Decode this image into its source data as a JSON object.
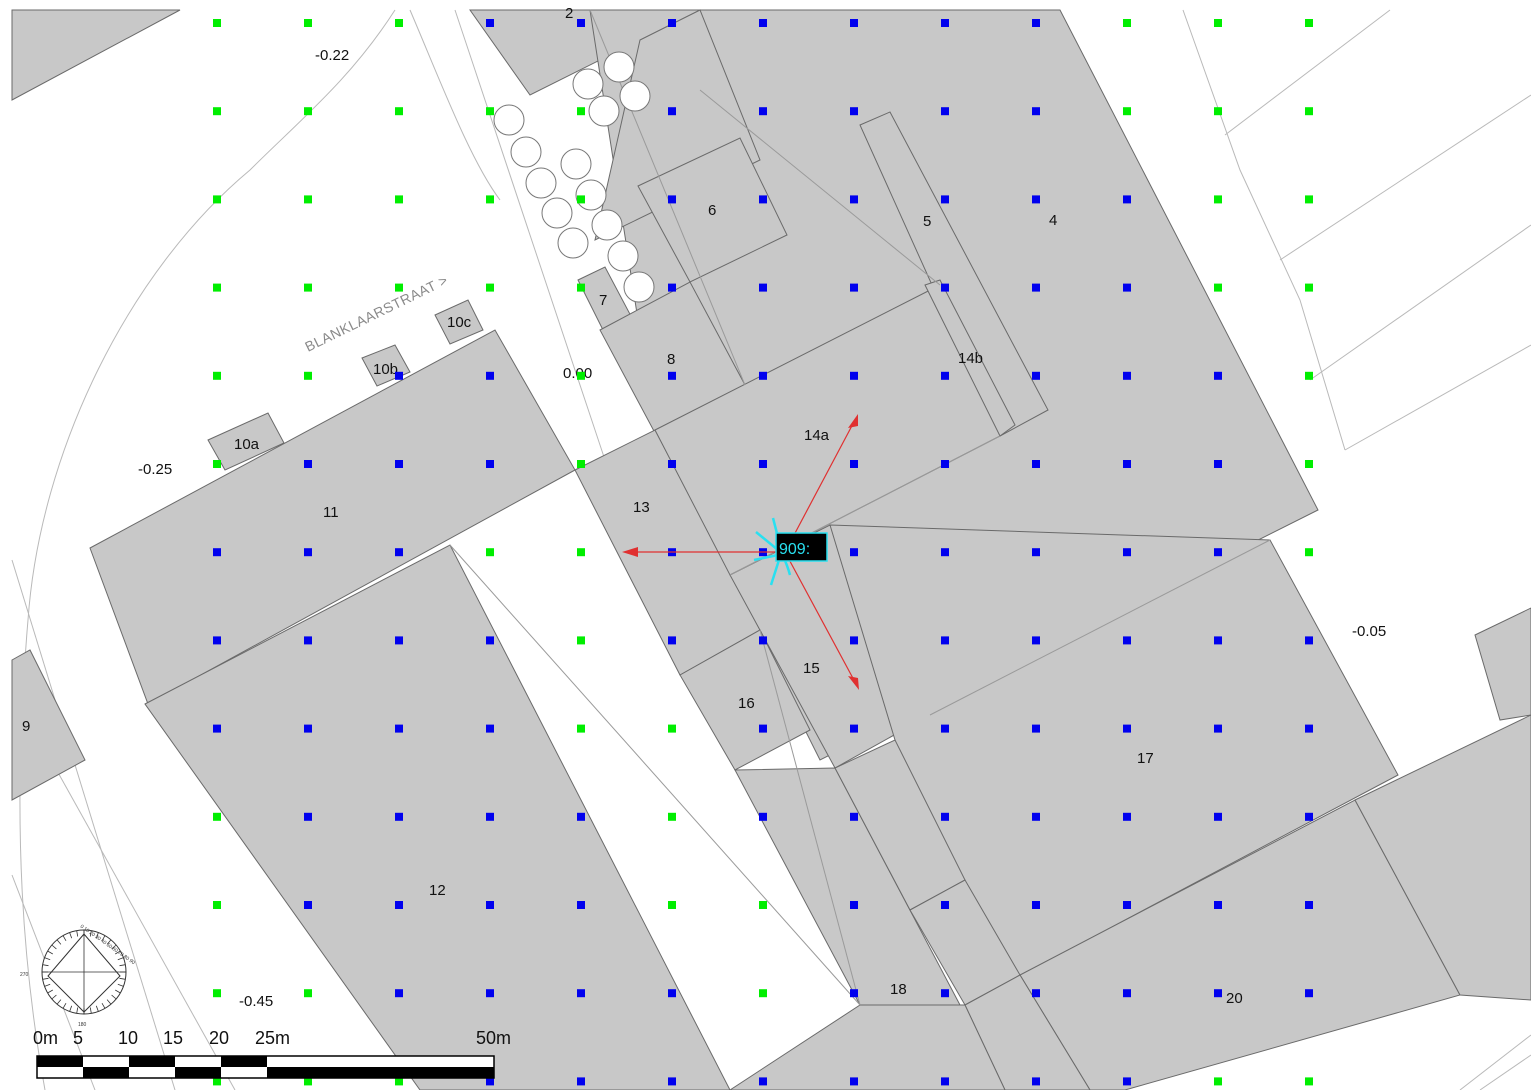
{
  "map": {
    "street_name": "BLANKLAARSTRAAT >",
    "parcel_labels": [
      {
        "id": "p2",
        "text": "2"
      },
      {
        "id": "p4",
        "text": "4"
      },
      {
        "id": "p5",
        "text": "5"
      },
      {
        "id": "p6",
        "text": "6"
      },
      {
        "id": "p7",
        "text": "7"
      },
      {
        "id": "p8",
        "text": "8"
      },
      {
        "id": "p9",
        "text": "9"
      },
      {
        "id": "p10a",
        "text": "10a"
      },
      {
        "id": "p10b",
        "text": "10b"
      },
      {
        "id": "p10c",
        "text": "10c"
      },
      {
        "id": "p11",
        "text": "11"
      },
      {
        "id": "p12",
        "text": "12"
      },
      {
        "id": "p13",
        "text": "13"
      },
      {
        "id": "p14a",
        "text": "14a"
      },
      {
        "id": "p14b",
        "text": "14b"
      },
      {
        "id": "p15",
        "text": "15"
      },
      {
        "id": "p16",
        "text": "16"
      },
      {
        "id": "p17",
        "text": "17"
      },
      {
        "id": "p18",
        "text": "18"
      },
      {
        "id": "p20",
        "text": "20"
      }
    ],
    "level_labels": [
      {
        "id": "l1",
        "text": "-0.22"
      },
      {
        "id": "l2",
        "text": "0.00"
      },
      {
        "id": "l3",
        "text": "-0.25"
      },
      {
        "id": "l4",
        "text": "-0.05"
      },
      {
        "id": "l5",
        "text": "-0.45"
      }
    ],
    "marker": {
      "label": "909:",
      "color": "#29e0f0"
    },
    "colors": {
      "grid_outside": "#00ee00",
      "grid_inside": "#0000ee",
      "arrow": "#e03030",
      "building": "#c8c8c8"
    },
    "scale_bar": {
      "labels": [
        "0m",
        "5",
        "10",
        "15",
        "20",
        "25m",
        "50m"
      ]
    },
    "compass": {
      "labels": [
        "270",
        "180",
        "0 10 20 30 40 50 60 70 80 90"
      ]
    }
  }
}
